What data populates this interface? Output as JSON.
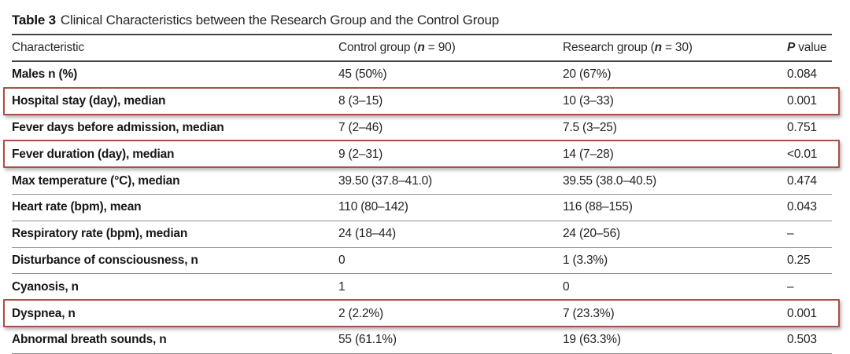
{
  "title": {
    "label": "Table 3",
    "text": "Clinical Characteristics between the Research Group and the Control Group"
  },
  "table": {
    "headers": {
      "characteristic": "Characteristic",
      "control_prefix": "Control group (",
      "control_n": "n",
      "control_suffix": " = 90)",
      "research_prefix": "Research group (",
      "research_n": "n",
      "research_suffix": " = 30)",
      "p_italic": "P",
      "p_suffix": " value"
    },
    "rows": [
      {
        "characteristic": "Males n (%)",
        "control": "45 (50%)",
        "research": "20 (67%)",
        "p": "0.084",
        "highlighted": false
      },
      {
        "characteristic": "Hospital stay (day), median",
        "control": "8 (3–15)",
        "research": "10 (3–33)",
        "p": "0.001",
        "highlighted": true
      },
      {
        "characteristic": "Fever days before admission, median",
        "control": "7 (2–46)",
        "research": "7.5 (3–25)",
        "p": "0.751",
        "highlighted": false
      },
      {
        "characteristic": "Fever duration (day), median",
        "control": "9 (2–31)",
        "research": "14 (7–28)",
        "p": "<0.01",
        "highlighted": true
      },
      {
        "characteristic": "Max temperature (°C), median",
        "control": "39.50 (37.8–41.0)",
        "research": "39.55 (38.0–40.5)",
        "p": "0.474",
        "highlighted": false
      },
      {
        "characteristic": "Heart rate (bpm), mean",
        "control": "110 (80–142)",
        "research": "116 (88–155)",
        "p": "0.043",
        "highlighted": false
      },
      {
        "characteristic": "Respiratory rate (bpm), median",
        "control": "24 (18–44)",
        "research": "24 (20–56)",
        "p": "–",
        "highlighted": false
      },
      {
        "characteristic": "Disturbance of consciousness, n",
        "control": "0",
        "research": "1 (3.3%)",
        "p": "0.25",
        "highlighted": false
      },
      {
        "characteristic": "Cyanosis, n",
        "control": "1",
        "research": "0",
        "p": "–",
        "highlighted": false
      },
      {
        "characteristic": "Dyspnea, n",
        "control": "2 (2.2%)",
        "research": "7 (23.3%)",
        "p": "0.001",
        "highlighted": true
      },
      {
        "characteristic": "Abnormal breath sounds, n",
        "control": "55 (61.1%)",
        "research": "19 (63.3%)",
        "p": "0.503",
        "highlighted": false
      }
    ]
  },
  "annotation": {
    "highlight_color": "#a94f45"
  }
}
